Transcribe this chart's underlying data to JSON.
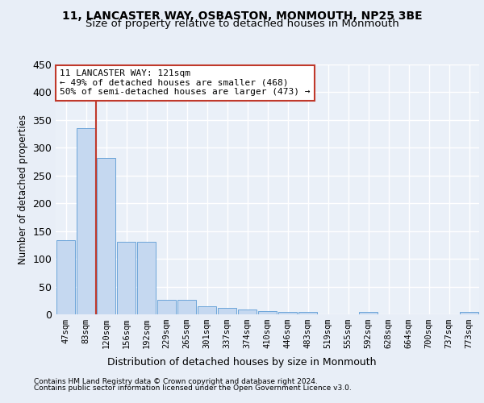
{
  "title1": "11, LANCASTER WAY, OSBASTON, MONMOUTH, NP25 3BE",
  "title2": "Size of property relative to detached houses in Monmouth",
  "xlabel": "Distribution of detached houses by size in Monmouth",
  "ylabel": "Number of detached properties",
  "bar_labels": [
    "47sqm",
    "83sqm",
    "120sqm",
    "156sqm",
    "192sqm",
    "229sqm",
    "265sqm",
    "301sqm",
    "337sqm",
    "374sqm",
    "410sqm",
    "446sqm",
    "483sqm",
    "519sqm",
    "555sqm",
    "592sqm",
    "628sqm",
    "664sqm",
    "700sqm",
    "737sqm",
    "773sqm"
  ],
  "bar_values": [
    134,
    335,
    281,
    131,
    131,
    26,
    26,
    15,
    11,
    9,
    6,
    5,
    4,
    0,
    0,
    4,
    0,
    0,
    0,
    0,
    4
  ],
  "bar_color": "#c5d8f0",
  "bar_edge_color": "#5b9bd5",
  "vline_x_idx": 2,
  "vline_color": "#c0392b",
  "annotation_line1": "11 LANCASTER WAY: 121sqm",
  "annotation_line2": "← 49% of detached houses are smaller (468)",
  "annotation_line3": "50% of semi-detached houses are larger (473) →",
  "annotation_box_color": "white",
  "annotation_box_edge": "#c0392b",
  "footer1": "Contains HM Land Registry data © Crown copyright and database right 2024.",
  "footer2": "Contains public sector information licensed under the Open Government Licence v3.0.",
  "bg_color": "#e8eef7",
  "plot_bg": "#eaf0f8",
  "ylim": [
    0,
    450
  ],
  "grid_color": "white",
  "title1_fontsize": 10,
  "title2_fontsize": 9.5,
  "tick_fontsize": 7.5,
  "ylabel_fontsize": 8.5,
  "xlabel_fontsize": 9,
  "footer_fontsize": 6.5
}
